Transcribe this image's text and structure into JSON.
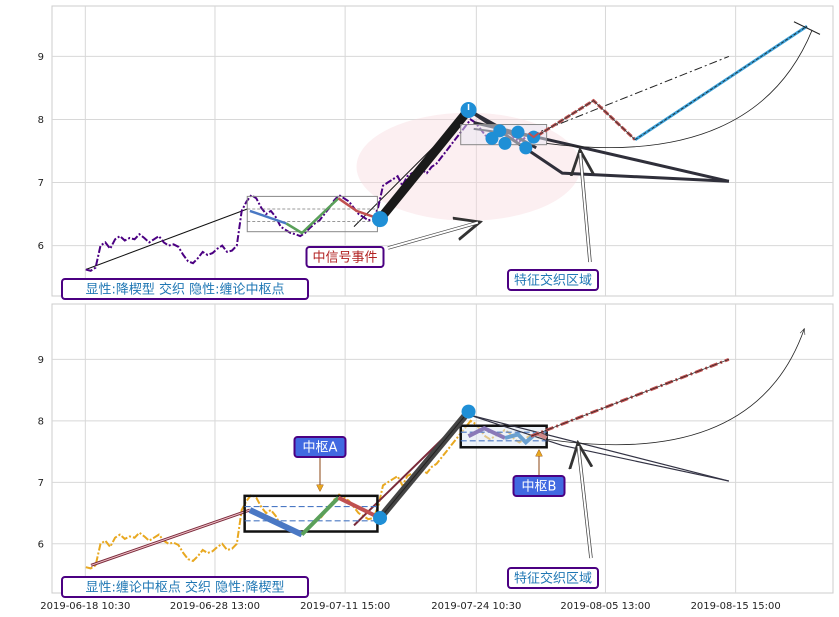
{
  "chart_data": [
    {
      "type": "line",
      "panel": "top",
      "ylim": [
        5.2,
        9.8
      ],
      "yticks": [
        "6",
        "7",
        "8",
        "9"
      ],
      "ytick_values": [
        6,
        7,
        8,
        9
      ],
      "grid": true,
      "price_series": {
        "style": "dash-dot",
        "color": "#4b0082",
        "values": [
          5.62,
          5.6,
          5.65,
          6.0,
          6.05,
          5.95,
          6.1,
          6.15,
          6.08,
          6.12,
          6.1,
          6.18,
          6.12,
          6.05,
          6.1,
          6.15,
          6.05,
          6.0,
          6.02,
          5.98,
          5.85,
          5.75,
          5.72,
          5.8,
          5.9,
          5.85,
          5.88,
          5.95,
          6.0,
          5.9,
          5.92,
          6.0,
          6.55,
          6.7,
          6.8,
          6.75,
          6.6,
          6.5,
          6.55,
          6.45,
          6.3,
          6.25,
          6.2,
          6.18,
          6.15,
          6.2,
          6.28,
          6.35,
          6.4,
          6.5,
          6.6,
          6.72,
          6.8,
          6.75,
          6.7,
          6.6,
          6.5,
          6.45,
          6.4,
          6.42,
          6.6,
          6.95,
          7.0,
          7.05,
          7.1,
          6.95,
          7.1,
          7.15,
          7.1,
          7.2,
          7.15,
          7.25,
          7.3,
          7.4,
          7.5,
          7.6,
          7.7,
          7.8,
          7.9,
          8.0,
          7.95,
          7.85,
          7.75,
          7.7,
          7.75,
          7.8,
          7.85,
          7.8,
          7.7,
          7.65,
          7.7,
          7.75,
          7.78,
          7.72
        ]
      },
      "annotations": [
        {
          "text": "显性:降楔型 交织 隐性:缠论中枢点",
          "color": "#1f77b4",
          "border": "#4b0082"
        },
        {
          "text": "中信号事件",
          "color": "#b22222",
          "border": "#4b0082"
        },
        {
          "text": "特征交织区域",
          "color": "#1f77b4",
          "border": "#4b0082"
        }
      ],
      "pivot_points": [
        {
          "x": 63.0,
          "y": 6.42
        },
        {
          "x": 80.0,
          "y": 8.15
        }
      ],
      "event_points": [
        {
          "x": 84.5,
          "y": 7.7
        },
        {
          "x": 86.0,
          "y": 7.82
        },
        {
          "x": 87.0,
          "y": 7.62
        },
        {
          "x": 89.5,
          "y": 7.8
        },
        {
          "x": 91.0,
          "y": 7.55
        },
        {
          "x": 92.5,
          "y": 7.72
        }
      ]
    },
    {
      "type": "line",
      "panel": "bottom",
      "ylim": [
        5.2,
        9.9
      ],
      "yticks": [
        "6",
        "7",
        "8",
        "9"
      ],
      "ytick_values": [
        6,
        7,
        8,
        9
      ],
      "grid": true,
      "xticks": [
        "2019-06-18 10:30",
        "2019-06-28 13:00",
        "2019-07-11 15:00",
        "2019-07-24 10:30",
        "2019-08-05 13:00",
        "2019-08-15 15:00"
      ],
      "price_series": {
        "style": "dash-dot",
        "color": "#e8a820",
        "values": [
          5.62,
          5.6,
          5.65,
          6.0,
          6.05,
          5.95,
          6.1,
          6.15,
          6.08,
          6.12,
          6.1,
          6.18,
          6.12,
          6.05,
          6.1,
          6.15,
          6.05,
          6.0,
          6.02,
          5.98,
          5.85,
          5.75,
          5.72,
          5.8,
          5.9,
          5.85,
          5.88,
          5.95,
          6.0,
          5.9,
          5.92,
          6.0,
          6.55,
          6.7,
          6.8,
          6.75,
          6.6,
          6.5,
          6.55,
          6.45,
          6.3,
          6.25,
          6.2,
          6.18,
          6.15,
          6.2,
          6.28,
          6.35,
          6.4,
          6.5,
          6.6,
          6.72,
          6.8,
          6.75,
          6.7,
          6.6,
          6.5,
          6.45,
          6.4,
          6.42,
          6.6,
          6.95,
          7.0,
          7.05,
          7.1,
          6.95,
          7.1,
          7.15,
          7.1,
          7.2,
          7.15,
          7.25,
          7.3,
          7.4,
          7.5,
          7.6,
          7.7,
          7.8,
          7.9,
          8.0,
          7.95,
          7.85,
          7.75,
          7.7,
          7.75,
          7.8,
          7.85,
          7.8,
          7.7,
          7.65,
          7.7,
          7.75,
          7.78,
          7.72
        ]
      },
      "annotations": [
        {
          "text": "显性:缠论中枢点 交织 隐性:降楔型",
          "color": "#1f77b4",
          "border": "#4b0082"
        },
        {
          "text": "中枢A",
          "color": "#ffffff",
          "fill": "#4169e1"
        },
        {
          "text": "中枢B",
          "color": "#ffffff",
          "fill": "#4169e1"
        },
        {
          "text": "特征交织区域",
          "color": "#1f77b4",
          "border": "#4b0082"
        }
      ],
      "pivot_points": [
        {
          "x": 63.0,
          "y": 6.42
        },
        {
          "x": 80.0,
          "y": 8.15
        }
      ],
      "zones": [
        {
          "name": "中枢A",
          "x0": 37.0,
          "x1": 62.5,
          "y0": 6.2,
          "y1": 6.78
        },
        {
          "name": "中枢B",
          "x0": 78.5,
          "x1": 95.0,
          "y0": 7.57,
          "y1": 7.92
        }
      ]
    }
  ]
}
